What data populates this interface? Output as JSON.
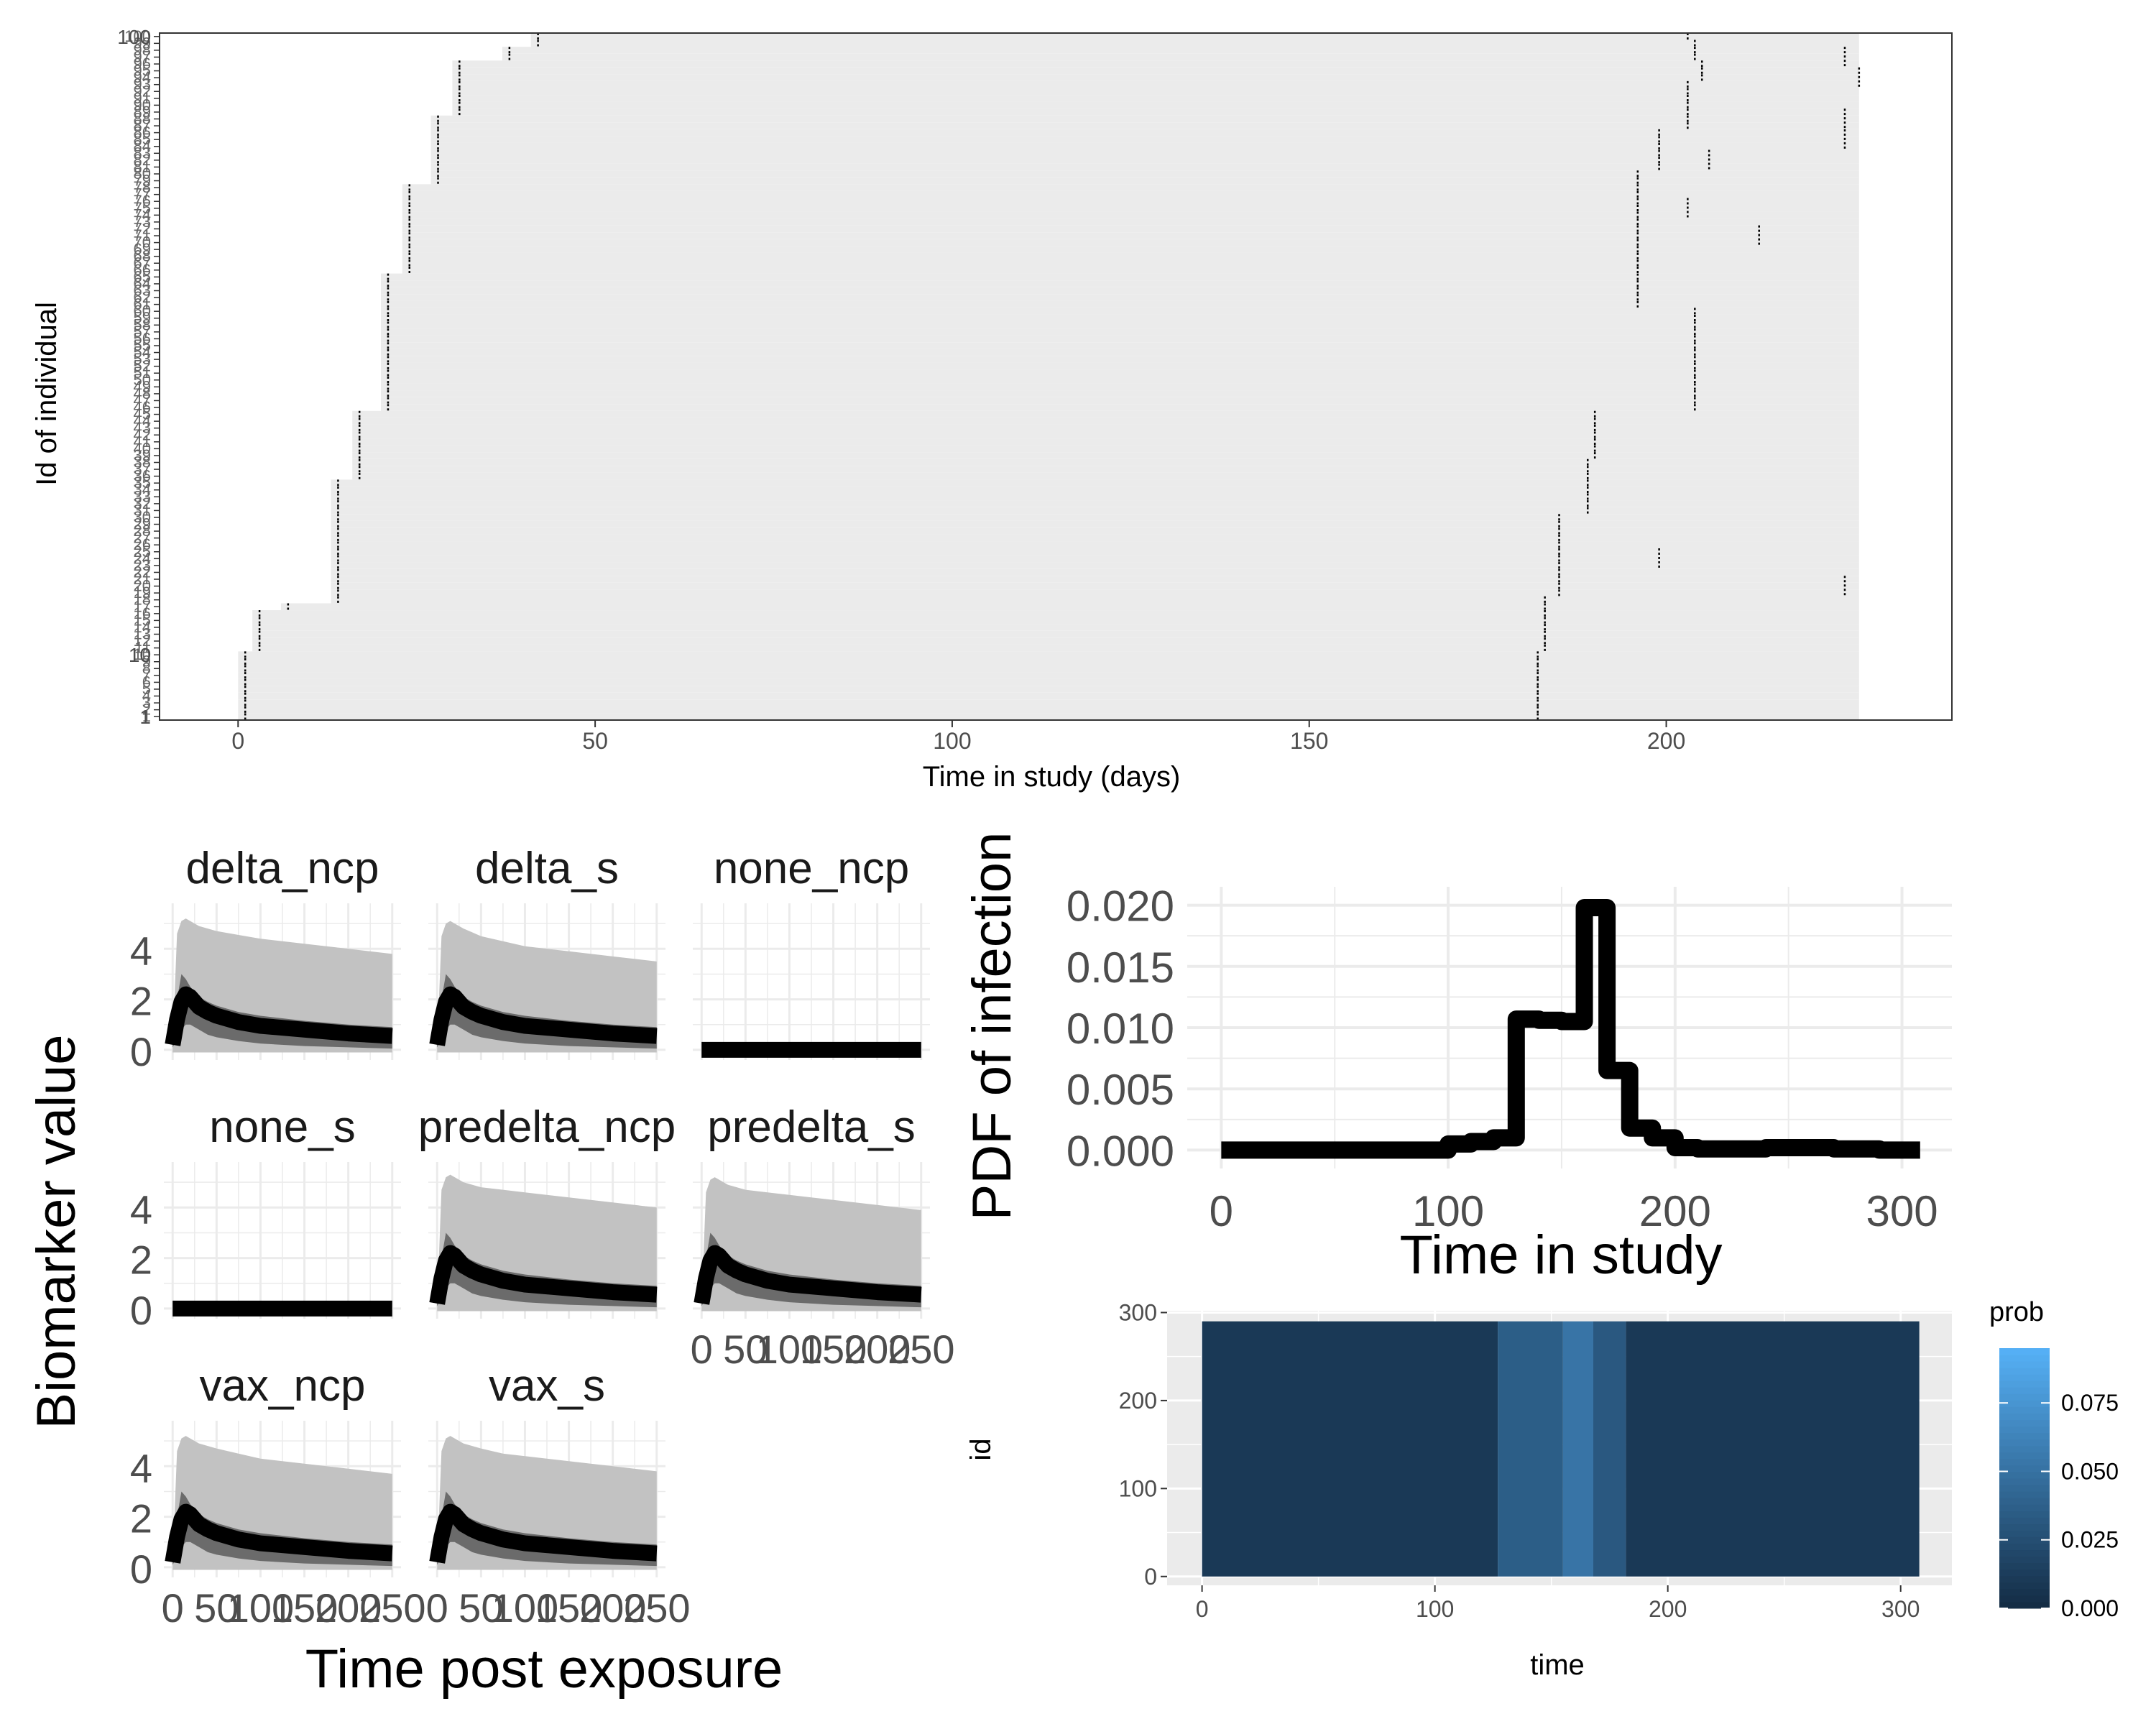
{
  "chart_data": [
    {
      "id": "timeline",
      "type": "timeline",
      "xlabel": "Time in study (days)",
      "ylabel": "Id of individual",
      "xlim": [
        -11,
        240
      ],
      "xticks": [
        0,
        50,
        100,
        150,
        200
      ],
      "ylim": [
        0.5,
        100.5
      ],
      "ytick_labels": [
        "1",
        "10",
        "100"
      ],
      "individuals": 100,
      "background": "#ebebeb",
      "panel_border": true,
      "grid": false,
      "enrollment_day_steps": [
        {
          "from_id": 1,
          "to_id": 10,
          "day": 1
        },
        {
          "from_id": 11,
          "to_id": 16,
          "day": 3
        },
        {
          "from_id": 17,
          "to_id": 17,
          "day": 7
        },
        {
          "from_id": 18,
          "to_id": 35,
          "day": 14
        },
        {
          "from_id": 36,
          "to_id": 45,
          "day": 17
        },
        {
          "from_id": 46,
          "to_id": 65,
          "day": 21
        },
        {
          "from_id": 66,
          "to_id": 78,
          "day": 24
        },
        {
          "from_id": 79,
          "to_id": 88,
          "day": 28
        },
        {
          "from_id": 89,
          "to_id": 96,
          "day": 31
        },
        {
          "from_id": 97,
          "to_id": 98,
          "day": 38
        },
        {
          "from_id": 99,
          "to_id": 100,
          "day": 42
        }
      ],
      "followup_day_steps": [
        {
          "from_id": 1,
          "to_id": 10,
          "day": 182
        },
        {
          "from_id": 11,
          "to_id": 18,
          "day": 183
        },
        {
          "from_id": 19,
          "to_id": 30,
          "day": 185
        },
        {
          "from_id": 31,
          "to_id": 38,
          "day": 189
        },
        {
          "from_id": 39,
          "to_id": 45,
          "day": 190
        },
        {
          "from_id": 46,
          "to_id": 60,
          "day": 204
        },
        {
          "from_id": 61,
          "to_id": 68,
          "day": 196
        },
        {
          "from_id": 69,
          "to_id": 80,
          "day": 196
        },
        {
          "from_id": 81,
          "to_id": 86,
          "day": 199
        },
        {
          "from_id": 87,
          "to_id": 93,
          "day": 203
        },
        {
          "from_id": 94,
          "to_id": 96,
          "day": 205
        },
        {
          "from_id": 97,
          "to_id": 99,
          "day": 204
        },
        {
          "from_id": 100,
          "to_id": 100,
          "day": 203
        }
      ],
      "extra_visits": [
        {
          "id": 24,
          "day": 199
        },
        {
          "id": 20,
          "day": 225
        },
        {
          "id": 71,
          "day": 213
        },
        {
          "id": 75,
          "day": 203
        },
        {
          "id": 85,
          "day": 225
        },
        {
          "id": 88,
          "day": 225
        },
        {
          "id": 97,
          "day": 225
        },
        {
          "id": 94,
          "day": 227
        },
        {
          "id": 82,
          "day": 206
        }
      ]
    },
    {
      "id": "biomarker",
      "type": "area",
      "facets": [
        "delta_ncp",
        "delta_s",
        "none_ncp",
        "none_s",
        "predelta_ncp",
        "predelta_s",
        "vax_ncp",
        "vax_s"
      ],
      "xlabel": "Time post exposure",
      "ylabel": "Biomarker value",
      "xlim": [
        -10,
        260
      ],
      "ylim": [
        -0.4,
        5.8
      ],
      "yticks": [
        0,
        2,
        4
      ],
      "xtick_labels": [
        "0",
        "50",
        "100",
        "150",
        "200",
        "250"
      ],
      "x": [
        0,
        5,
        10,
        15,
        20,
        25,
        30,
        40,
        50,
        75,
        100,
        150,
        200,
        250
      ],
      "mean": {
        "default": [
          0.2,
          1.2,
          1.9,
          2.2,
          2.1,
          1.9,
          1.7,
          1.5,
          1.35,
          1.1,
          0.95,
          0.8,
          0.65,
          0.55
        ],
        "none": [
          0,
          0,
          0,
          0,
          0,
          0,
          0,
          0,
          0,
          0,
          0,
          0,
          0,
          0
        ]
      },
      "outer_upper": {
        "delta_ncp": [
          0.2,
          4.6,
          5.1,
          5.2,
          5.1,
          5.0,
          4.9,
          4.8,
          4.7,
          4.55,
          4.4,
          4.2,
          4.0,
          3.8
        ],
        "delta_s": [
          0.2,
          4.5,
          5.0,
          5.1,
          5.0,
          4.9,
          4.8,
          4.65,
          4.5,
          4.3,
          4.1,
          3.9,
          3.7,
          3.5
        ],
        "predelta_ncp": [
          0.2,
          4.7,
          5.2,
          5.3,
          5.2,
          5.1,
          5.0,
          4.9,
          4.8,
          4.7,
          4.6,
          4.4,
          4.2,
          4.0
        ],
        "predelta_s": [
          0.2,
          4.6,
          5.1,
          5.2,
          5.1,
          5.0,
          4.9,
          4.8,
          4.7,
          4.6,
          4.5,
          4.3,
          4.1,
          3.9
        ],
        "vax_ncp": [
          0.2,
          4.6,
          5.1,
          5.2,
          5.1,
          5.0,
          4.9,
          4.8,
          4.7,
          4.5,
          4.3,
          4.1,
          3.9,
          3.7
        ],
        "vax_s": [
          0.2,
          4.6,
          5.1,
          5.2,
          5.1,
          5.0,
          4.9,
          4.8,
          4.7,
          4.5,
          4.4,
          4.2,
          4.0,
          3.8
        ]
      },
      "outer_lower": [
        -0.1,
        -0.1,
        -0.1,
        -0.1,
        -0.1,
        -0.1,
        -0.1,
        -0.1,
        -0.1,
        -0.1,
        -0.1,
        -0.1,
        -0.1,
        -0.1
      ],
      "inner_upper": [
        0.3,
        2.0,
        3.0,
        2.8,
        2.5,
        2.3,
        2.1,
        1.9,
        1.75,
        1.5,
        1.35,
        1.15,
        1.0,
        0.9
      ],
      "inner_lower": [
        0.1,
        0.4,
        0.8,
        1.0,
        1.0,
        0.9,
        0.8,
        0.6,
        0.5,
        0.35,
        0.25,
        0.15,
        0.1,
        0.05
      ],
      "colors": {
        "outer": "#c2c2c2",
        "inner": "#6b6b6b",
        "line": "#000000"
      }
    },
    {
      "id": "pdf",
      "type": "line",
      "step": true,
      "xlabel": "Time in study",
      "ylabel": "PDF of infection",
      "xlim": [
        -15,
        322
      ],
      "ylim": [
        -0.0015,
        0.0215
      ],
      "xticks": [
        0,
        100,
        200,
        300
      ],
      "yticks": [
        0.0,
        0.005,
        0.01,
        0.015,
        0.02
      ],
      "ytick_labels": [
        "0.000",
        "0.005",
        "0.010",
        "0.015",
        "0.020"
      ],
      "x": [
        0,
        10,
        20,
        30,
        40,
        50,
        60,
        70,
        80,
        90,
        100,
        110,
        120,
        130,
        140,
        150,
        160,
        170,
        180,
        190,
        200,
        210,
        220,
        230,
        240,
        250,
        260,
        270,
        280,
        290,
        300,
        308
      ],
      "y": [
        0,
        0,
        0,
        0,
        0,
        0,
        0,
        0,
        0,
        0,
        0.0005,
        0.0007,
        0.001,
        0.0107,
        0.0106,
        0.0105,
        0.0198,
        0.0065,
        0.0018,
        0.001,
        0.0002,
        0.0001,
        0.0001,
        0.0001,
        0.0002,
        0.0002,
        0.0002,
        0.0001,
        0.0001,
        0,
        0,
        0
      ],
      "line_color": "#000000"
    },
    {
      "id": "heatmap",
      "type": "heatmap",
      "xlabel": "time",
      "ylabel": "id",
      "xlim": [
        -15,
        322
      ],
      "ylim": [
        -10,
        302
      ],
      "xticks": [
        0,
        100,
        200,
        300
      ],
      "yticks": [
        0,
        100,
        200,
        300
      ],
      "x_extent": [
        0,
        308
      ],
      "id_extent": [
        0,
        290
      ],
      "base_prob": 0.01,
      "columns": [
        {
          "from": 0,
          "to": 127,
          "prob": 0.01
        },
        {
          "from": 127,
          "to": 155,
          "prob": 0.036
        },
        {
          "from": 155,
          "to": 168,
          "prob": 0.052
        },
        {
          "from": 168,
          "to": 182,
          "prob": 0.032
        },
        {
          "from": 182,
          "to": 308,
          "prob": 0.01
        }
      ],
      "legend": {
        "title": "prob",
        "breaks": [
          0.0,
          0.025,
          0.05,
          0.075
        ],
        "labels": [
          "0.000",
          "0.025",
          "0.050",
          "0.075"
        ],
        "limits": [
          0,
          0.095
        ],
        "low_color": "#132b43",
        "high_color": "#56b1f7"
      }
    }
  ]
}
